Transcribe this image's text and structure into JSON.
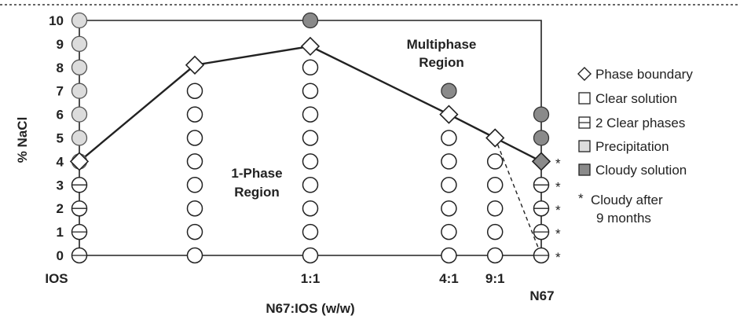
{
  "chart_data": {
    "type": "scatter",
    "xlabel": "N67:IOS (w/w)",
    "ylabel": "% NaCl",
    "ylim": [
      0,
      10
    ],
    "y_ticks": [
      "0",
      "1",
      "2",
      "3",
      "4",
      "5",
      "6",
      "7",
      "8",
      "9",
      "10"
    ],
    "x_tick_labels": [
      {
        "x": 0,
        "label": "IOS"
      },
      {
        "x": 0.5,
        "label": "1:1"
      },
      {
        "x": 0.8,
        "label": "4:1"
      },
      {
        "x": 0.9,
        "label": "9:1"
      },
      {
        "x": 1,
        "label": "N67"
      }
    ],
    "grid": false,
    "legend_position": "right",
    "legend": [
      {
        "symbol": "diamond",
        "label": "Phase boundary"
      },
      {
        "symbol": "square-open",
        "label": "Clear solution"
      },
      {
        "symbol": "square-split",
        "label": "2 Clear phases"
      },
      {
        "symbol": "square-light",
        "label": "Precipitation"
      },
      {
        "symbol": "square-dark",
        "label": "Cloudy solution"
      },
      {
        "symbol": "asterisk",
        "label": "Cloudy after 9 months"
      }
    ],
    "annotations": [
      {
        "text": "Multiphase Region"
      },
      {
        "text": "1-Phase Region"
      }
    ],
    "series": [
      {
        "name": "Phase boundary",
        "x": [
          0,
          0.25,
          0.5,
          0.8,
          0.9,
          1
        ],
        "y": [
          4,
          8.1,
          8.9,
          6,
          5,
          4
        ],
        "marker": "diamond"
      },
      {
        "name": "Clear solution",
        "marker": "circle-open",
        "x": [
          0.25,
          0.25,
          0.25,
          0.25,
          0.25,
          0.25,
          0.25,
          0.25,
          0.5,
          0.5,
          0.5,
          0.5,
          0.5,
          0.5,
          0.5,
          0.5,
          0.5,
          0.8,
          0.8,
          0.8,
          0.8,
          0.8,
          0.8,
          0.9,
          0.9,
          0.9,
          0.9,
          0.9
        ],
        "y": [
          0,
          1,
          2,
          3,
          4,
          5,
          6,
          7,
          0,
          1,
          2,
          3,
          4,
          5,
          6,
          7,
          8,
          0,
          1,
          2,
          3,
          4,
          5,
          0,
          1,
          2,
          3,
          4
        ]
      },
      {
        "name": "2 Clear phases",
        "marker": "circle-split",
        "x": [
          0,
          0,
          0,
          0,
          1,
          1,
          1,
          1
        ],
        "y": [
          0,
          1,
          2,
          3,
          0,
          1,
          2,
          3
        ]
      },
      {
        "name": "Precipitation",
        "marker": "circle-light",
        "x": [
          0,
          0,
          0,
          0,
          0,
          0,
          0
        ],
        "y": [
          4,
          5,
          6,
          7,
          8,
          9,
          10
        ]
      },
      {
        "name": "Cloudy solution",
        "marker": "circle-dark",
        "x": [
          0.5,
          0.8,
          1,
          1
        ],
        "y": [
          10,
          7,
          6,
          5
        ]
      },
      {
        "name": "Cloudy after 9 months",
        "marker": "asterisk",
        "x": [
          1,
          1,
          1,
          1,
          1
        ],
        "y": [
          0,
          1,
          2,
          3,
          4
        ]
      }
    ],
    "dashed_line": {
      "x": [
        0.9,
        1
      ],
      "y": [
        5,
        0
      ]
    }
  },
  "colors": {
    "ink": "#222222",
    "light_fill": "#dcdcdc",
    "dark_fill": "#8a8a8a",
    "boundary_fill": "#ffffff"
  }
}
